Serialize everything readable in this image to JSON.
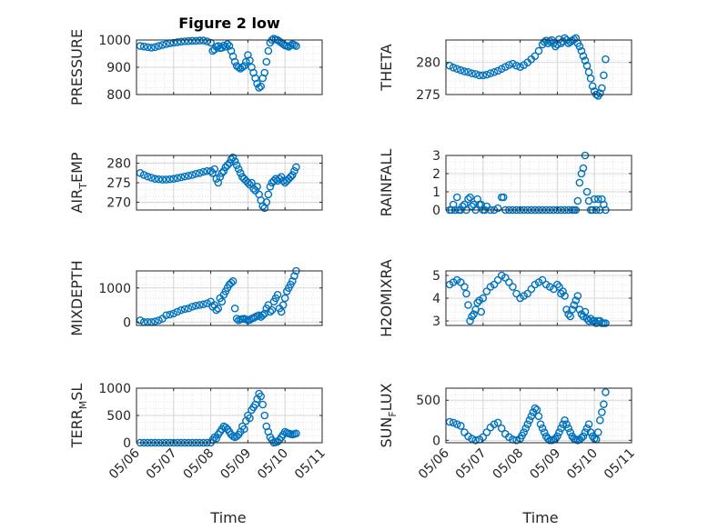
{
  "figure": {
    "title": "Figure 2 low",
    "xlabel": "Time"
  },
  "xticks": [
    "05/06",
    "05/07",
    "05/08",
    "05/09",
    "05/10",
    "05/11"
  ],
  "colors": {
    "marker": "#0072BD",
    "axes": "#262626",
    "grid": "#d7d7d7"
  },
  "chart_data": [
    {
      "type": "scatter",
      "ylabel": "PRESSURE",
      "ylim": [
        800,
        1000
      ],
      "yticks": [
        800,
        900,
        1000
      ],
      "xlim": [
        0,
        5
      ],
      "grid": true,
      "x": [
        0.1,
        0.2,
        0.3,
        0.4,
        0.5,
        0.6,
        0.7,
        0.8,
        0.9,
        1.0,
        1.1,
        1.2,
        1.3,
        1.4,
        1.5,
        1.6,
        1.7,
        1.8,
        1.9,
        2.0,
        2.05,
        2.1,
        2.15,
        2.2,
        2.25,
        2.3,
        2.35,
        2.4,
        2.45,
        2.5,
        2.55,
        2.6,
        2.65,
        2.7,
        2.75,
        2.8,
        2.85,
        2.9,
        2.95,
        3.0,
        3.05,
        3.1,
        3.15,
        3.2,
        3.25,
        3.3,
        3.35,
        3.4,
        3.45,
        3.5,
        3.55,
        3.6,
        3.65,
        3.7,
        3.75,
        3.8,
        3.85,
        3.9,
        3.95,
        4.0,
        4.05,
        4.1,
        4.15,
        4.2,
        4.25,
        4.3
      ],
      "values": [
        978,
        976,
        974,
        972,
        974,
        978,
        982,
        985,
        988,
        990,
        992,
        994,
        995,
        996,
        997,
        997,
        998,
        998,
        995,
        990,
        960,
        965,
        975,
        978,
        970,
        972,
        980,
        975,
        985,
        978,
        960,
        940,
        920,
        905,
        900,
        895,
        900,
        905,
        920,
        945,
        925,
        900,
        880,
        860,
        840,
        825,
        830,
        860,
        880,
        920,
        960,
        990,
        1000,
        1005,
        1002,
        1000,
        995,
        990,
        985,
        980,
        978,
        975,
        980,
        985,
        982,
        978
      ]
    },
    {
      "type": "scatter",
      "ylabel": "THETA",
      "ylim": [
        275,
        283.5
      ],
      "yticks": [
        275,
        280
      ],
      "xlim": [
        0,
        5
      ],
      "grid": true,
      "x": [
        0.1,
        0.2,
        0.3,
        0.4,
        0.5,
        0.6,
        0.7,
        0.8,
        0.9,
        1.0,
        1.1,
        1.2,
        1.3,
        1.4,
        1.5,
        1.6,
        1.7,
        1.8,
        1.9,
        2.0,
        2.1,
        2.2,
        2.3,
        2.4,
        2.5,
        2.6,
        2.65,
        2.7,
        2.75,
        2.8,
        2.85,
        2.9,
        2.95,
        3.0,
        3.05,
        3.1,
        3.15,
        3.2,
        3.25,
        3.3,
        3.35,
        3.4,
        3.45,
        3.5,
        3.55,
        3.6,
        3.65,
        3.7,
        3.75,
        3.8,
        3.85,
        3.9,
        3.95,
        4.0,
        4.05,
        4.1,
        4.15,
        4.2,
        4.25,
        4.3
      ],
      "values": [
        279.5,
        279.2,
        279.0,
        278.8,
        278.6,
        278.5,
        278.3,
        278.2,
        278.0,
        278.0,
        278.1,
        278.3,
        278.5,
        278.7,
        279.0,
        279.3,
        279.6,
        279.8,
        279.5,
        279.3,
        279.6,
        280.0,
        280.5,
        281.0,
        281.8,
        282.8,
        283.2,
        283.4,
        283.0,
        283.3,
        283.5,
        283.0,
        282.5,
        282.8,
        283.6,
        283.0,
        283.3,
        283.8,
        283.5,
        283.0,
        283.2,
        283.4,
        283.6,
        283.8,
        283.0,
        282.5,
        281.8,
        281.0,
        280.3,
        279.5,
        278.5,
        277.5,
        276.3,
        275.5,
        275.0,
        274.8,
        275.2,
        276.0,
        278.0,
        280.5
      ]
    },
    {
      "type": "scatter",
      "ylabel": "AIR_TEMP",
      "ylim": [
        268,
        282
      ],
      "yticks": [
        270,
        275,
        280
      ],
      "xlim": [
        0,
        5
      ],
      "grid": true,
      "x": [
        0.1,
        0.2,
        0.3,
        0.4,
        0.5,
        0.6,
        0.7,
        0.8,
        0.9,
        1.0,
        1.1,
        1.2,
        1.3,
        1.4,
        1.5,
        1.6,
        1.7,
        1.8,
        1.9,
        2.0,
        2.05,
        2.1,
        2.15,
        2.2,
        2.25,
        2.3,
        2.35,
        2.4,
        2.45,
        2.5,
        2.55,
        2.6,
        2.65,
        2.7,
        2.75,
        2.8,
        2.85,
        2.9,
        2.95,
        3.0,
        3.05,
        3.1,
        3.15,
        3.2,
        3.25,
        3.3,
        3.35,
        3.4,
        3.45,
        3.5,
        3.55,
        3.6,
        3.65,
        3.7,
        3.75,
        3.8,
        3.85,
        3.9,
        3.95,
        4.0,
        4.05,
        4.1,
        4.15,
        4.2,
        4.25,
        4.3
      ],
      "values": [
        277.5,
        277.0,
        276.6,
        276.3,
        276.0,
        275.9,
        275.8,
        275.8,
        275.9,
        276.0,
        276.2,
        276.4,
        276.6,
        276.8,
        277.0,
        277.3,
        277.5,
        277.8,
        278.0,
        278.0,
        277.5,
        278.5,
        276.0,
        275.0,
        276.5,
        277.5,
        278.0,
        279.0,
        279.5,
        280.0,
        281.0,
        281.5,
        280.5,
        279.5,
        278.5,
        277.5,
        276.5,
        276.0,
        275.5,
        275.0,
        274.5,
        275.0,
        273.5,
        273.0,
        274.0,
        272.0,
        270.5,
        269.0,
        268.5,
        270.0,
        272.0,
        274.0,
        275.0,
        275.5,
        276.0,
        275.5,
        276.0,
        276.5,
        275.5,
        275.0,
        275.5,
        276.0,
        276.5,
        277.0,
        278.0,
        279.0
      ]
    },
    {
      "type": "scatter",
      "ylabel": "RAINFALL",
      "ylim": [
        0,
        3
      ],
      "yticks": [
        0,
        1,
        2,
        3
      ],
      "xlim": [
        0,
        5
      ],
      "grid": true,
      "x": [
        0.1,
        0.15,
        0.2,
        0.25,
        0.3,
        0.35,
        0.4,
        0.45,
        0.5,
        0.55,
        0.6,
        0.65,
        0.7,
        0.75,
        0.8,
        0.85,
        0.9,
        0.95,
        1.0,
        1.05,
        1.1,
        1.2,
        1.3,
        1.4,
        1.5,
        1.55,
        1.6,
        1.7,
        1.8,
        1.9,
        2.0,
        2.1,
        2.2,
        2.3,
        2.4,
        2.5,
        2.6,
        2.7,
        2.8,
        2.9,
        3.0,
        3.1,
        3.2,
        3.3,
        3.4,
        3.45,
        3.5,
        3.55,
        3.6,
        3.65,
        3.7,
        3.75,
        3.8,
        3.85,
        3.9,
        3.95,
        4.0,
        4.05,
        4.1,
        4.15,
        4.2,
        4.25,
        4.3
      ],
      "values": [
        0,
        0,
        0.3,
        0,
        0.7,
        0,
        0,
        0.2,
        0.3,
        0,
        0.6,
        0.7,
        0.2,
        0.3,
        0,
        0.6,
        0.3,
        0.3,
        0,
        0,
        0.2,
        0,
        0,
        0.1,
        0.7,
        0.7,
        0,
        0,
        0,
        0,
        0,
        0,
        0,
        0,
        0,
        0,
        0,
        0,
        0,
        0,
        0,
        0,
        0,
        0,
        0,
        0,
        0,
        0.5,
        1.5,
        2.0,
        2.3,
        3.0,
        1.0,
        0.5,
        0,
        0,
        0.6,
        0,
        0.6,
        0,
        0.6,
        0.3,
        0
      ]
    },
    {
      "type": "scatter",
      "ylabel": "MIXDEPTH",
      "ylim": [
        -100,
        1500
      ],
      "yticks": [
        0,
        1000
      ],
      "xlim": [
        0,
        5
      ],
      "grid": true,
      "x": [
        0.1,
        0.2,
        0.3,
        0.4,
        0.5,
        0.6,
        0.7,
        0.8,
        0.9,
        1.0,
        1.1,
        1.2,
        1.3,
        1.4,
        1.5,
        1.6,
        1.7,
        1.8,
        1.9,
        2.0,
        2.05,
        2.1,
        2.15,
        2.2,
        2.25,
        2.3,
        2.35,
        2.4,
        2.45,
        2.5,
        2.55,
        2.6,
        2.65,
        2.7,
        2.75,
        2.8,
        2.85,
        2.9,
        2.95,
        3.0,
        3.05,
        3.1,
        3.15,
        3.2,
        3.25,
        3.3,
        3.35,
        3.4,
        3.45,
        3.5,
        3.55,
        3.6,
        3.65,
        3.7,
        3.75,
        3.8,
        3.85,
        3.9,
        3.95,
        4.0,
        4.05,
        4.1,
        4.15,
        4.2,
        4.25,
        4.3
      ],
      "values": [
        50,
        0,
        0,
        0,
        20,
        50,
        100,
        200,
        220,
        250,
        300,
        350,
        380,
        400,
        450,
        480,
        500,
        520,
        550,
        600,
        450,
        500,
        350,
        400,
        700,
        600,
        800,
        900,
        1000,
        1100,
        1150,
        1200,
        400,
        100,
        50,
        80,
        90,
        100,
        80,
        50,
        60,
        100,
        120,
        150,
        180,
        200,
        150,
        200,
        250,
        400,
        500,
        300,
        350,
        600,
        700,
        800,
        400,
        300,
        500,
        700,
        900,
        1000,
        1100,
        1200,
        1350,
        1500
      ]
    },
    {
      "type": "scatter",
      "ylabel": "H2OMIXRA",
      "ylim": [
        2.8,
        5.2
      ],
      "yticks": [
        3,
        4,
        5
      ],
      "xlim": [
        0,
        5
      ],
      "grid": true,
      "x": [
        0.1,
        0.2,
        0.3,
        0.4,
        0.5,
        0.55,
        0.6,
        0.65,
        0.7,
        0.75,
        0.8,
        0.85,
        0.9,
        0.95,
        1.0,
        1.1,
        1.2,
        1.3,
        1.4,
        1.5,
        1.6,
        1.7,
        1.8,
        1.9,
        2.0,
        2.1,
        2.2,
        2.3,
        2.4,
        2.5,
        2.6,
        2.7,
        2.8,
        2.9,
        3.0,
        3.05,
        3.1,
        3.15,
        3.2,
        3.25,
        3.3,
        3.35,
        3.4,
        3.45,
        3.5,
        3.55,
        3.6,
        3.65,
        3.7,
        3.75,
        3.8,
        3.85,
        3.9,
        3.95,
        4.0,
        4.05,
        4.1,
        4.15,
        4.2,
        4.25,
        4.3
      ],
      "values": [
        4.6,
        4.7,
        4.8,
        4.7,
        4.5,
        4.2,
        3.7,
        3.0,
        3.2,
        3.3,
        3.5,
        3.8,
        3.9,
        3.4,
        4.0,
        4.3,
        4.5,
        4.6,
        4.8,
        5.0,
        4.9,
        4.7,
        4.5,
        4.2,
        4.0,
        4.1,
        4.2,
        4.4,
        4.6,
        4.7,
        4.8,
        4.6,
        4.5,
        4.4,
        4.6,
        4.5,
        4.2,
        4.3,
        4.1,
        3.5,
        3.3,
        3.2,
        3.5,
        3.7,
        3.9,
        4.1,
        3.5,
        3.3,
        3.2,
        3.4,
        3.1,
        3.0,
        3.1,
        3.0,
        3.0,
        2.9,
        3.0,
        3.0,
        2.9,
        2.9,
        2.9
      ]
    },
    {
      "type": "scatter",
      "ylabel": "TERR_MSL",
      "ylim": [
        0,
        1000
      ],
      "yticks": [
        0,
        500,
        1000
      ],
      "xlim": [
        0,
        5
      ],
      "grid": true,
      "x": [
        0.1,
        0.2,
        0.3,
        0.4,
        0.5,
        0.6,
        0.7,
        0.8,
        0.9,
        1.0,
        1.1,
        1.2,
        1.3,
        1.4,
        1.5,
        1.6,
        1.7,
        1.8,
        1.9,
        2.0,
        2.05,
        2.1,
        2.15,
        2.2,
        2.25,
        2.3,
        2.35,
        2.4,
        2.45,
        2.5,
        2.55,
        2.6,
        2.65,
        2.7,
        2.75,
        2.8,
        2.85,
        2.9,
        2.95,
        3.0,
        3.05,
        3.1,
        3.15,
        3.2,
        3.25,
        3.3,
        3.35,
        3.4,
        3.45,
        3.5,
        3.55,
        3.6,
        3.65,
        3.7,
        3.75,
        3.8,
        3.85,
        3.9,
        3.95,
        4.0,
        4.05,
        4.1,
        4.15,
        4.2,
        4.25,
        4.3
      ],
      "values": [
        0,
        0,
        0,
        0,
        0,
        0,
        0,
        0,
        0,
        0,
        0,
        0,
        0,
        0,
        0,
        0,
        0,
        0,
        0,
        0,
        50,
        100,
        80,
        150,
        200,
        250,
        300,
        280,
        250,
        200,
        150,
        120,
        100,
        120,
        150,
        200,
        300,
        250,
        400,
        500,
        450,
        600,
        650,
        700,
        800,
        900,
        850,
        700,
        500,
        300,
        200,
        100,
        50,
        0,
        10,
        20,
        50,
        100,
        150,
        200,
        180,
        170,
        160,
        150,
        160,
        170
      ]
    },
    {
      "type": "scatter",
      "ylabel": "SUN_FLUX",
      "ylim": [
        -30,
        650
      ],
      "yticks": [
        0,
        500
      ],
      "xlim": [
        0,
        5
      ],
      "grid": true,
      "x": [
        0.1,
        0.2,
        0.3,
        0.4,
        0.5,
        0.6,
        0.7,
        0.8,
        0.9,
        1.0,
        1.1,
        1.2,
        1.3,
        1.4,
        1.5,
        1.6,
        1.7,
        1.8,
        1.9,
        2.0,
        2.05,
        2.1,
        2.15,
        2.2,
        2.25,
        2.3,
        2.35,
        2.4,
        2.45,
        2.5,
        2.55,
        2.6,
        2.65,
        2.7,
        2.75,
        2.8,
        2.85,
        2.9,
        2.95,
        3.0,
        3.05,
        3.1,
        3.15,
        3.2,
        3.25,
        3.3,
        3.35,
        3.4,
        3.45,
        3.5,
        3.55,
        3.6,
        3.65,
        3.7,
        3.75,
        3.8,
        3.85,
        3.9,
        3.95,
        4.0,
        4.05,
        4.1,
        4.15,
        4.2,
        4.25,
        4.3
      ],
      "values": [
        230,
        220,
        200,
        180,
        100,
        50,
        20,
        0,
        10,
        40,
        100,
        160,
        200,
        220,
        150,
        80,
        40,
        10,
        0,
        20,
        60,
        100,
        150,
        200,
        250,
        300,
        350,
        400,
        380,
        300,
        200,
        150,
        100,
        50,
        20,
        0,
        0,
        10,
        20,
        50,
        100,
        150,
        200,
        250,
        200,
        150,
        100,
        50,
        20,
        10,
        0,
        10,
        30,
        50,
        100,
        150,
        200,
        100,
        50,
        20,
        10,
        100,
        250,
        350,
        450,
        600
      ]
    }
  ]
}
